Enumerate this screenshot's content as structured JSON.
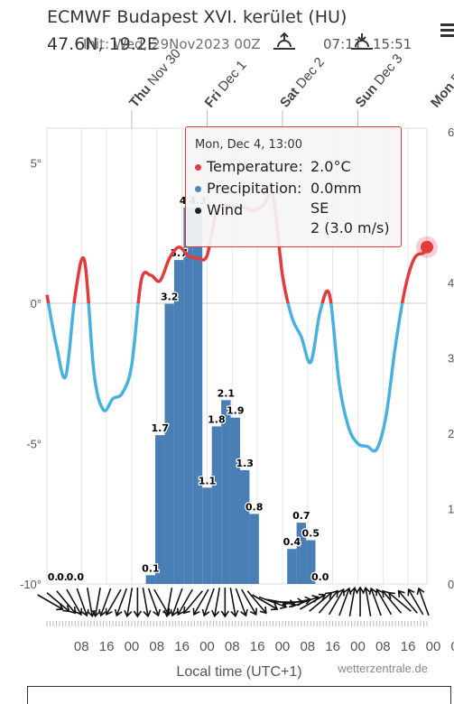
{
  "header": {
    "title": "ECMWF Budapest XVI. kerület (HU)",
    "coords": "47.6N, 19.2E",
    "init": "Init: Wed, 29Nov2023 00Z",
    "sunrise": "07:11",
    "sunset": "15:51"
  },
  "tooltip": {
    "header": "Mon, Dec 4, 13:00",
    "rows": [
      {
        "label": "Temperature:",
        "value": "2.0°C",
        "color": "#e23b3b"
      },
      {
        "label": "Precipitation:",
        "value": "0.0mm",
        "color": "#4a8ac4"
      },
      {
        "label": "Wind",
        "value": "SE",
        "value2": "2 (3.0 m/s)",
        "color": "#222222"
      }
    ]
  },
  "footer": {
    "xlabel": "Local time (UTC+1)",
    "credit": "wetterzentrale.de"
  },
  "chart_data": {
    "type": "line+bar",
    "days": [
      {
        "dow": "Thu",
        "date": "Nov 30"
      },
      {
        "dow": "Fri",
        "date": "Dec 1"
      },
      {
        "dow": "Sat",
        "date": "Dec 2"
      },
      {
        "dow": "Sun",
        "date": "Dec 3"
      },
      {
        "dow": "Mon",
        "date": "Dec 4"
      }
    ],
    "x_tick_labels": [
      "08",
      "16",
      "00",
      "08",
      "16",
      "00",
      "08",
      "16",
      "00",
      "08",
      "16",
      "00",
      "08",
      "16",
      "00",
      "08"
    ],
    "y_left_ticks": [
      "5°",
      "0°",
      "-5°",
      "-10°"
    ],
    "y_right_ticks": [
      "6",
      "4",
      "3",
      "2",
      "1",
      "0"
    ],
    "temperature": {
      "name": "Temperature",
      "unit": "°C",
      "hours": [
        -3,
        0,
        3,
        6,
        9,
        12,
        15,
        18,
        21,
        24,
        27,
        30,
        33,
        36,
        39,
        42,
        45,
        48,
        51,
        54,
        57,
        60,
        63,
        66,
        69,
        72,
        75,
        78,
        81,
        84,
        87,
        90,
        93,
        96,
        99,
        102,
        105,
        108,
        111,
        114,
        117,
        118
      ],
      "values": [
        0.3,
        -1.5,
        -2.6,
        0.3,
        1.5,
        -2.5,
        -3.8,
        -3.4,
        -3.2,
        -2.2,
        0.8,
        1.0,
        0.8,
        1.6,
        2.0,
        1.7,
        1.6,
        1.7,
        3.3,
        3.5,
        3.4,
        3.4,
        3.3,
        3.5,
        3.8,
        1.0,
        -0.5,
        -1.2,
        -2.1,
        -0.3,
        0.3,
        -2.8,
        -4.4,
        -5.0,
        -5.1,
        -5.2,
        -4.0,
        -1.5,
        0.5,
        1.6,
        1.8,
        2.0
      ]
    },
    "precipitation": {
      "name": "Precipitation",
      "unit": "mm",
      "bars": [
        {
          "hour": 0,
          "value": 0.0
        },
        {
          "hour": 3,
          "value": 0.0
        },
        {
          "hour": 6,
          "value": 0.0
        },
        {
          "hour": 30,
          "value": 0.1
        },
        {
          "hour": 33,
          "value": 1.7
        },
        {
          "hour": 36,
          "value": 3.2
        },
        {
          "hour": 39,
          "value": 3.7
        },
        {
          "hour": 42,
          "value": 4.3
        },
        {
          "hour": 45,
          "value": 4.3
        },
        {
          "hour": 48,
          "value": 1.1
        },
        {
          "hour": 51,
          "value": 1.8
        },
        {
          "hour": 54,
          "value": 2.1
        },
        {
          "hour": 57,
          "value": 1.9
        },
        {
          "hour": 60,
          "value": 1.3
        },
        {
          "hour": 63,
          "value": 0.8
        },
        {
          "hour": 75,
          "value": 0.4
        },
        {
          "hour": 78,
          "value": 0.7
        },
        {
          "hour": 81,
          "value": 0.5
        },
        {
          "hour": 84,
          "value": 0.0
        }
      ],
      "labels": [
        {
          "hour": 0,
          "value": "0.0"
        },
        {
          "hour": 3,
          "value": "0.0"
        },
        {
          "hour": 6,
          "value": "0.0"
        },
        {
          "hour": 30,
          "value": "0.1"
        },
        {
          "hour": 33,
          "value": "1.7"
        },
        {
          "hour": 36,
          "value": "3.2"
        },
        {
          "hour": 39,
          "value": "3.7"
        },
        {
          "hour": 42,
          "value": "4.3"
        },
        {
          "hour": 45,
          "value": "4.3"
        },
        {
          "hour": 48,
          "value": "1.1"
        },
        {
          "hour": 51,
          "value": "1.8"
        },
        {
          "hour": 54,
          "value": "2.1"
        },
        {
          "hour": 57,
          "value": "1.9"
        },
        {
          "hour": 60,
          "value": "1.3"
        },
        {
          "hour": 63,
          "value": "0.8"
        },
        {
          "hour": 75,
          "value": "0.4"
        },
        {
          "hour": 78,
          "value": "0.7"
        },
        {
          "hour": 81,
          "value": "0.5"
        },
        {
          "hour": 84,
          "value": "0.0"
        }
      ]
    },
    "wind_dirs_deg": [
      300,
      310,
      320,
      330,
      340,
      350,
      10,
      20,
      30,
      20,
      10,
      0,
      350,
      340,
      330,
      10,
      20,
      30,
      40,
      30,
      20,
      10,
      0,
      350,
      340,
      330,
      320,
      300,
      290,
      280,
      270,
      260,
      250,
      240,
      230,
      220,
      210,
      200,
      190,
      180,
      170,
      160,
      150,
      140,
      130,
      140,
      150,
      160
    ],
    "colors": {
      "warm": "#e23b3b",
      "cold": "#4ab0e0",
      "bar": "#4a7fb5",
      "grid": "#dddddd"
    }
  }
}
